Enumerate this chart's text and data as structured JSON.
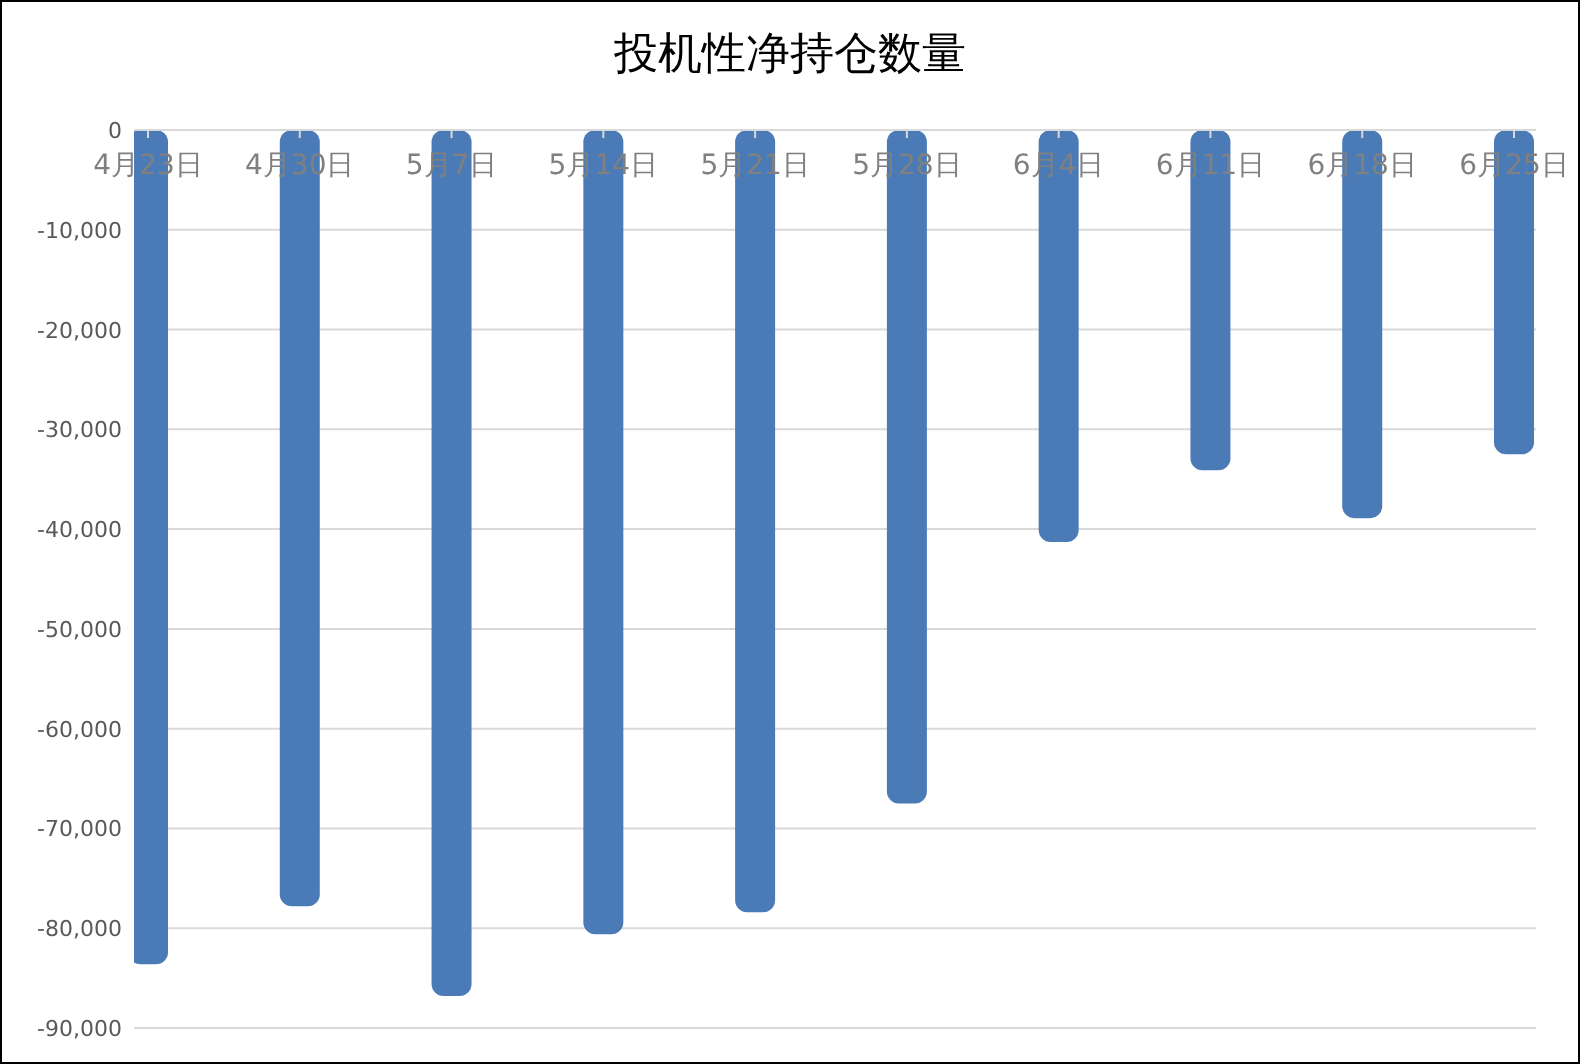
{
  "chart_data": {
    "type": "bar",
    "title": "投机性净持仓数量",
    "categories": [
      "4月23日",
      "4月30日",
      "5月7日",
      "5月14日",
      "5月21日",
      "5月28日",
      "6月4日",
      "6月11日",
      "6月18日",
      "6月25日"
    ],
    "values": [
      -83600,
      -77800,
      -86800,
      -80600,
      -78400,
      -67500,
      -41300,
      -34100,
      -38900,
      -32500
    ],
    "color": "#4a7bb7",
    "ylim": [
      -90000,
      0
    ],
    "yticks": [
      {
        "value": -90000,
        "label": "-90,000"
      },
      {
        "value": -80000,
        "label": "-80,000"
      },
      {
        "value": -70000,
        "label": "-70,000"
      },
      {
        "value": -60000,
        "label": "-60,000"
      },
      {
        "value": -50000,
        "label": "-50,000"
      },
      {
        "value": -40000,
        "label": "-40,000"
      },
      {
        "value": -30000,
        "label": "-30,000"
      },
      {
        "value": -20000,
        "label": "-20,000"
      },
      {
        "value": -10000,
        "label": "-10,000"
      },
      0
    ],
    "grid": "y"
  }
}
